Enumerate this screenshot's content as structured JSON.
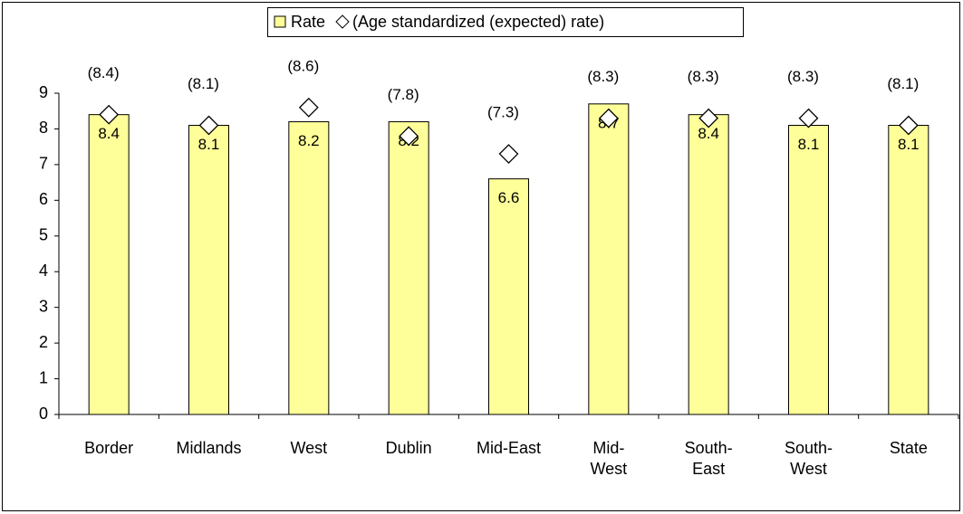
{
  "chart_data": {
    "type": "bar",
    "categories": [
      "Border",
      "Midlands",
      "West",
      "Dublin",
      "Mid-East",
      "Mid-\nWest",
      "South-\nEast",
      "South-\nWest",
      "State"
    ],
    "series": [
      {
        "name": "Rate",
        "color": "#ffff99",
        "values": [
          8.4,
          8.1,
          8.2,
          8.2,
          6.6,
          8.7,
          8.4,
          8.1,
          8.1
        ]
      },
      {
        "name": "(Age standardized (expected) rate)",
        "color": "#ffffff",
        "marker": "diamond",
        "values": [
          8.4,
          8.1,
          8.6,
          7.8,
          7.3,
          8.3,
          8.3,
          8.3,
          8.1
        ],
        "value_labels": [
          "(8.4)",
          "(8.1)",
          "(8.6)",
          "(7.8)",
          "(7.3)",
          "(8.3)",
          "(8.3)",
          "(8.3)",
          "(8.1)"
        ]
      }
    ],
    "ylim": [
      0,
      9
    ],
    "yticks": [
      0,
      1,
      2,
      3,
      4,
      5,
      6,
      7,
      8,
      9
    ],
    "grid": false,
    "legend": "top"
  }
}
